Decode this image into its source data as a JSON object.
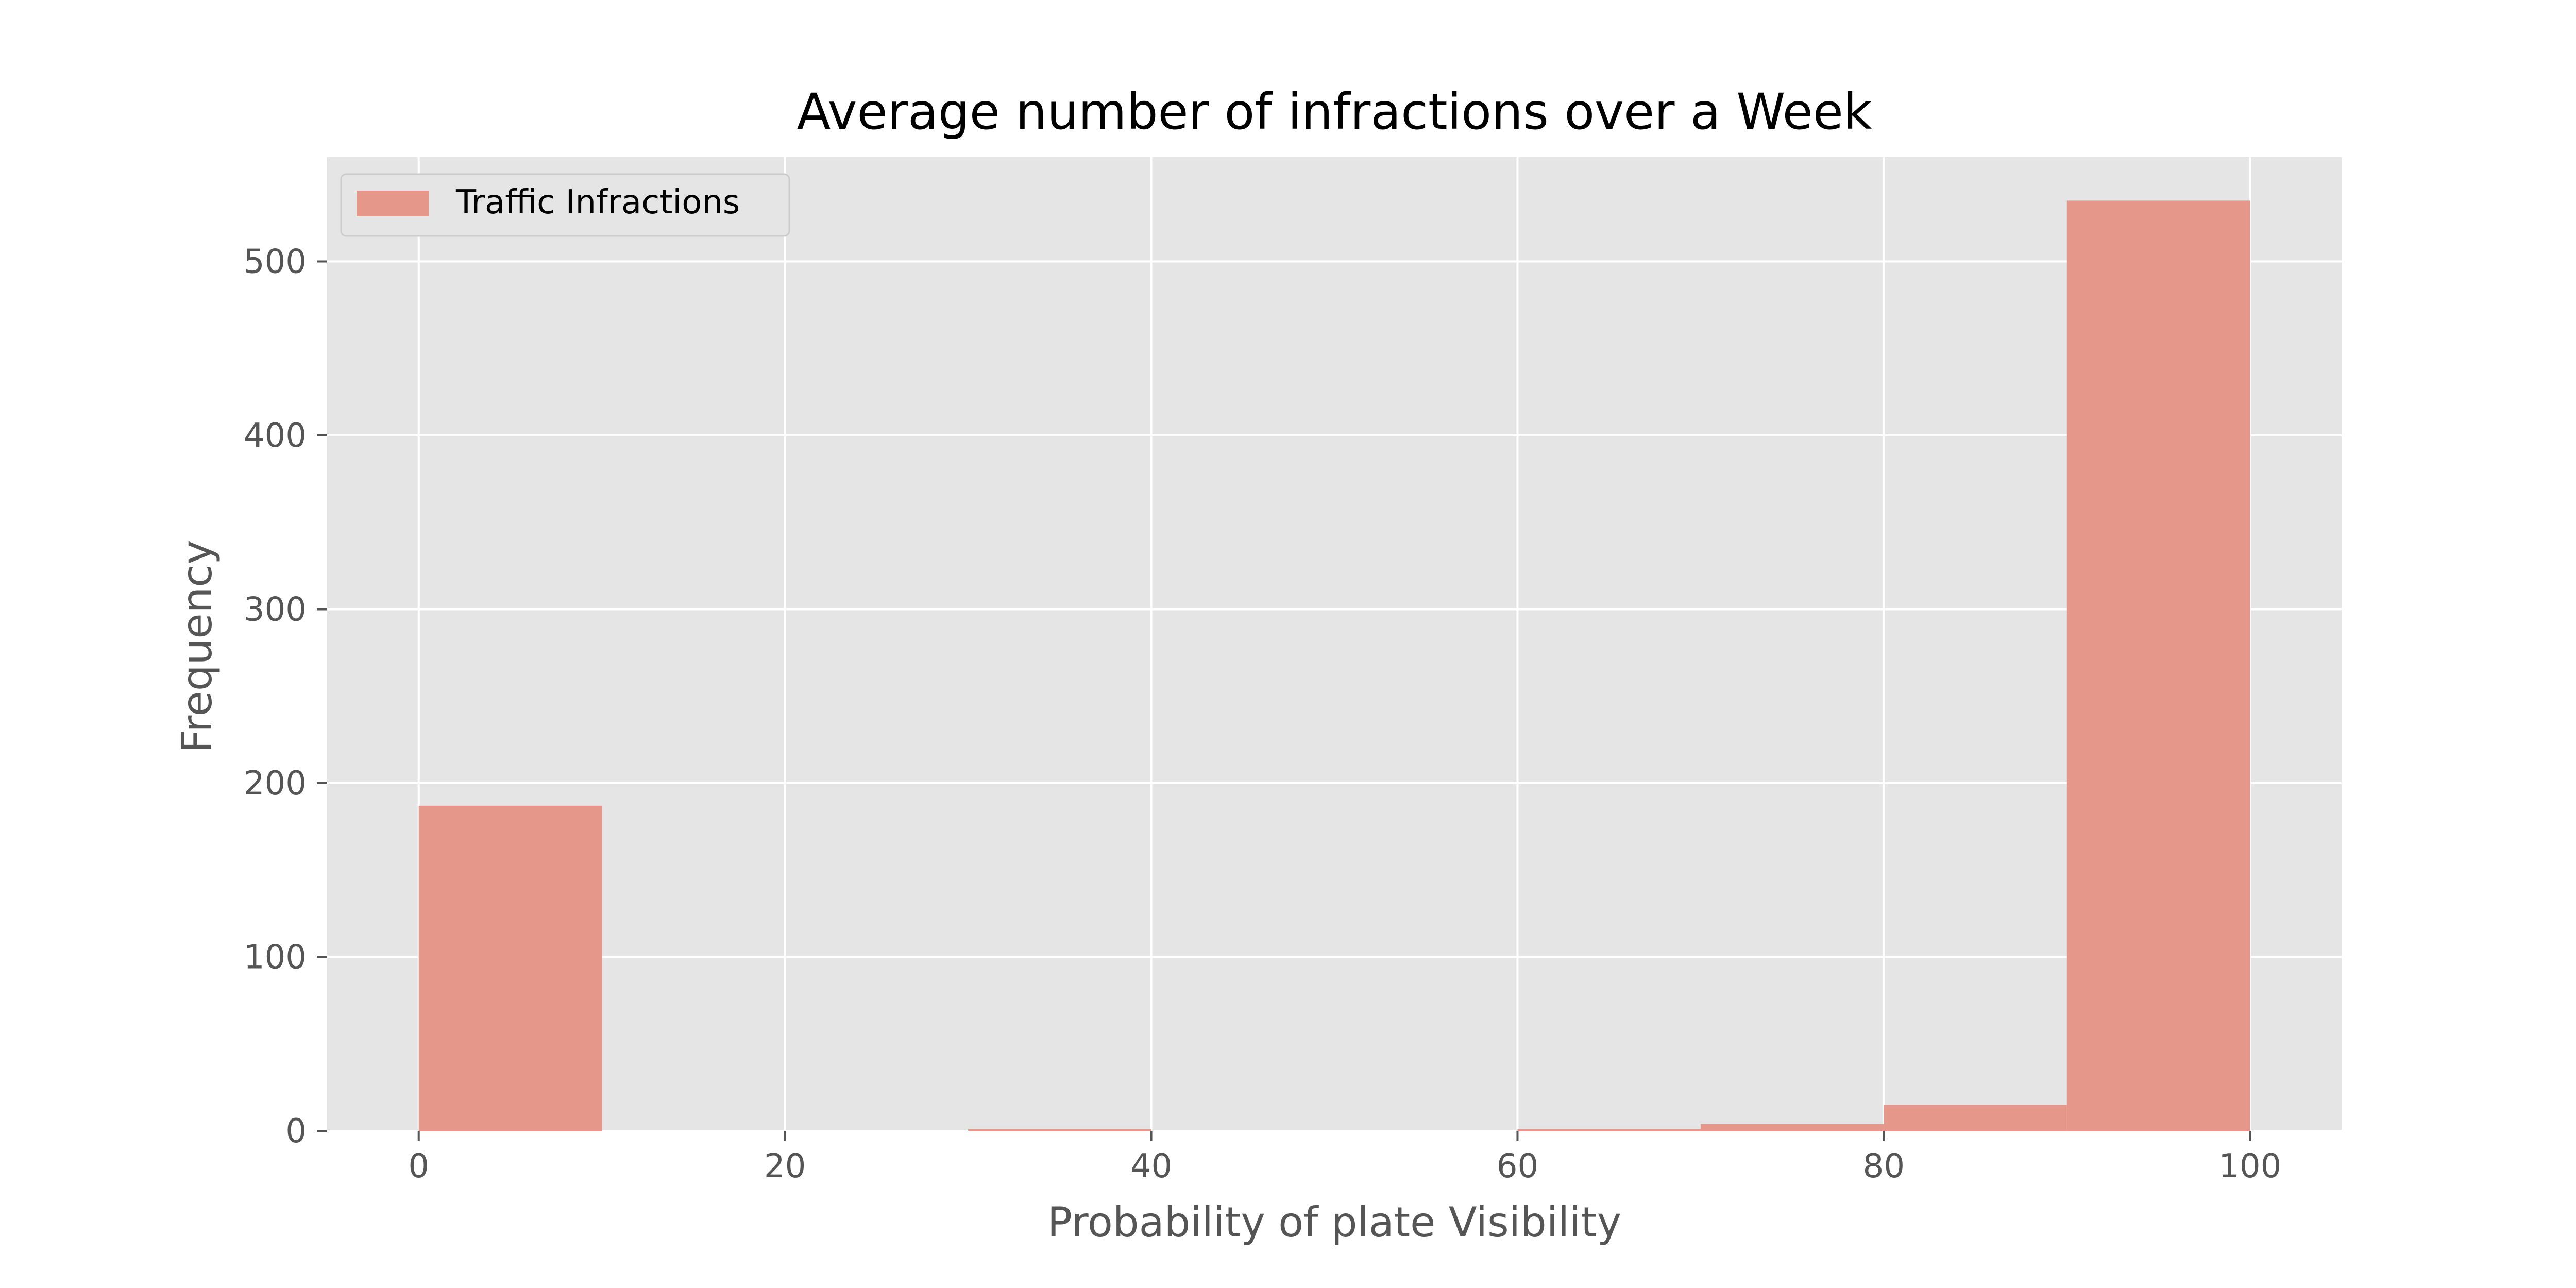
{
  "chart_data": {
    "type": "bar",
    "title": "Average number of infractions over a Week",
    "xlabel": "Probability of plate Visibility",
    "ylabel": "Frequency",
    "xlim": [
      -5,
      105
    ],
    "ylim": [
      0,
      560
    ],
    "xticks": [
      0,
      20,
      40,
      60,
      80,
      100
    ],
    "yticks": [
      0,
      100,
      200,
      300,
      400,
      500
    ],
    "grid": true,
    "legend_position": "top-left",
    "bar_color": "#e5988a",
    "series": [
      {
        "name": "Traffic Infractions",
        "bins": [
          {
            "x0": 0,
            "x1": 10,
            "value": 187
          },
          {
            "x0": 10,
            "x1": 20,
            "value": 0
          },
          {
            "x0": 20,
            "x1": 30,
            "value": 0
          },
          {
            "x0": 30,
            "x1": 40,
            "value": 1
          },
          {
            "x0": 40,
            "x1": 50,
            "value": 0
          },
          {
            "x0": 50,
            "x1": 60,
            "value": 0
          },
          {
            "x0": 60,
            "x1": 70,
            "value": 1
          },
          {
            "x0": 70,
            "x1": 80,
            "value": 4
          },
          {
            "x0": 80,
            "x1": 90,
            "value": 15
          },
          {
            "x0": 90,
            "x1": 100,
            "value": 535
          }
        ]
      }
    ]
  }
}
